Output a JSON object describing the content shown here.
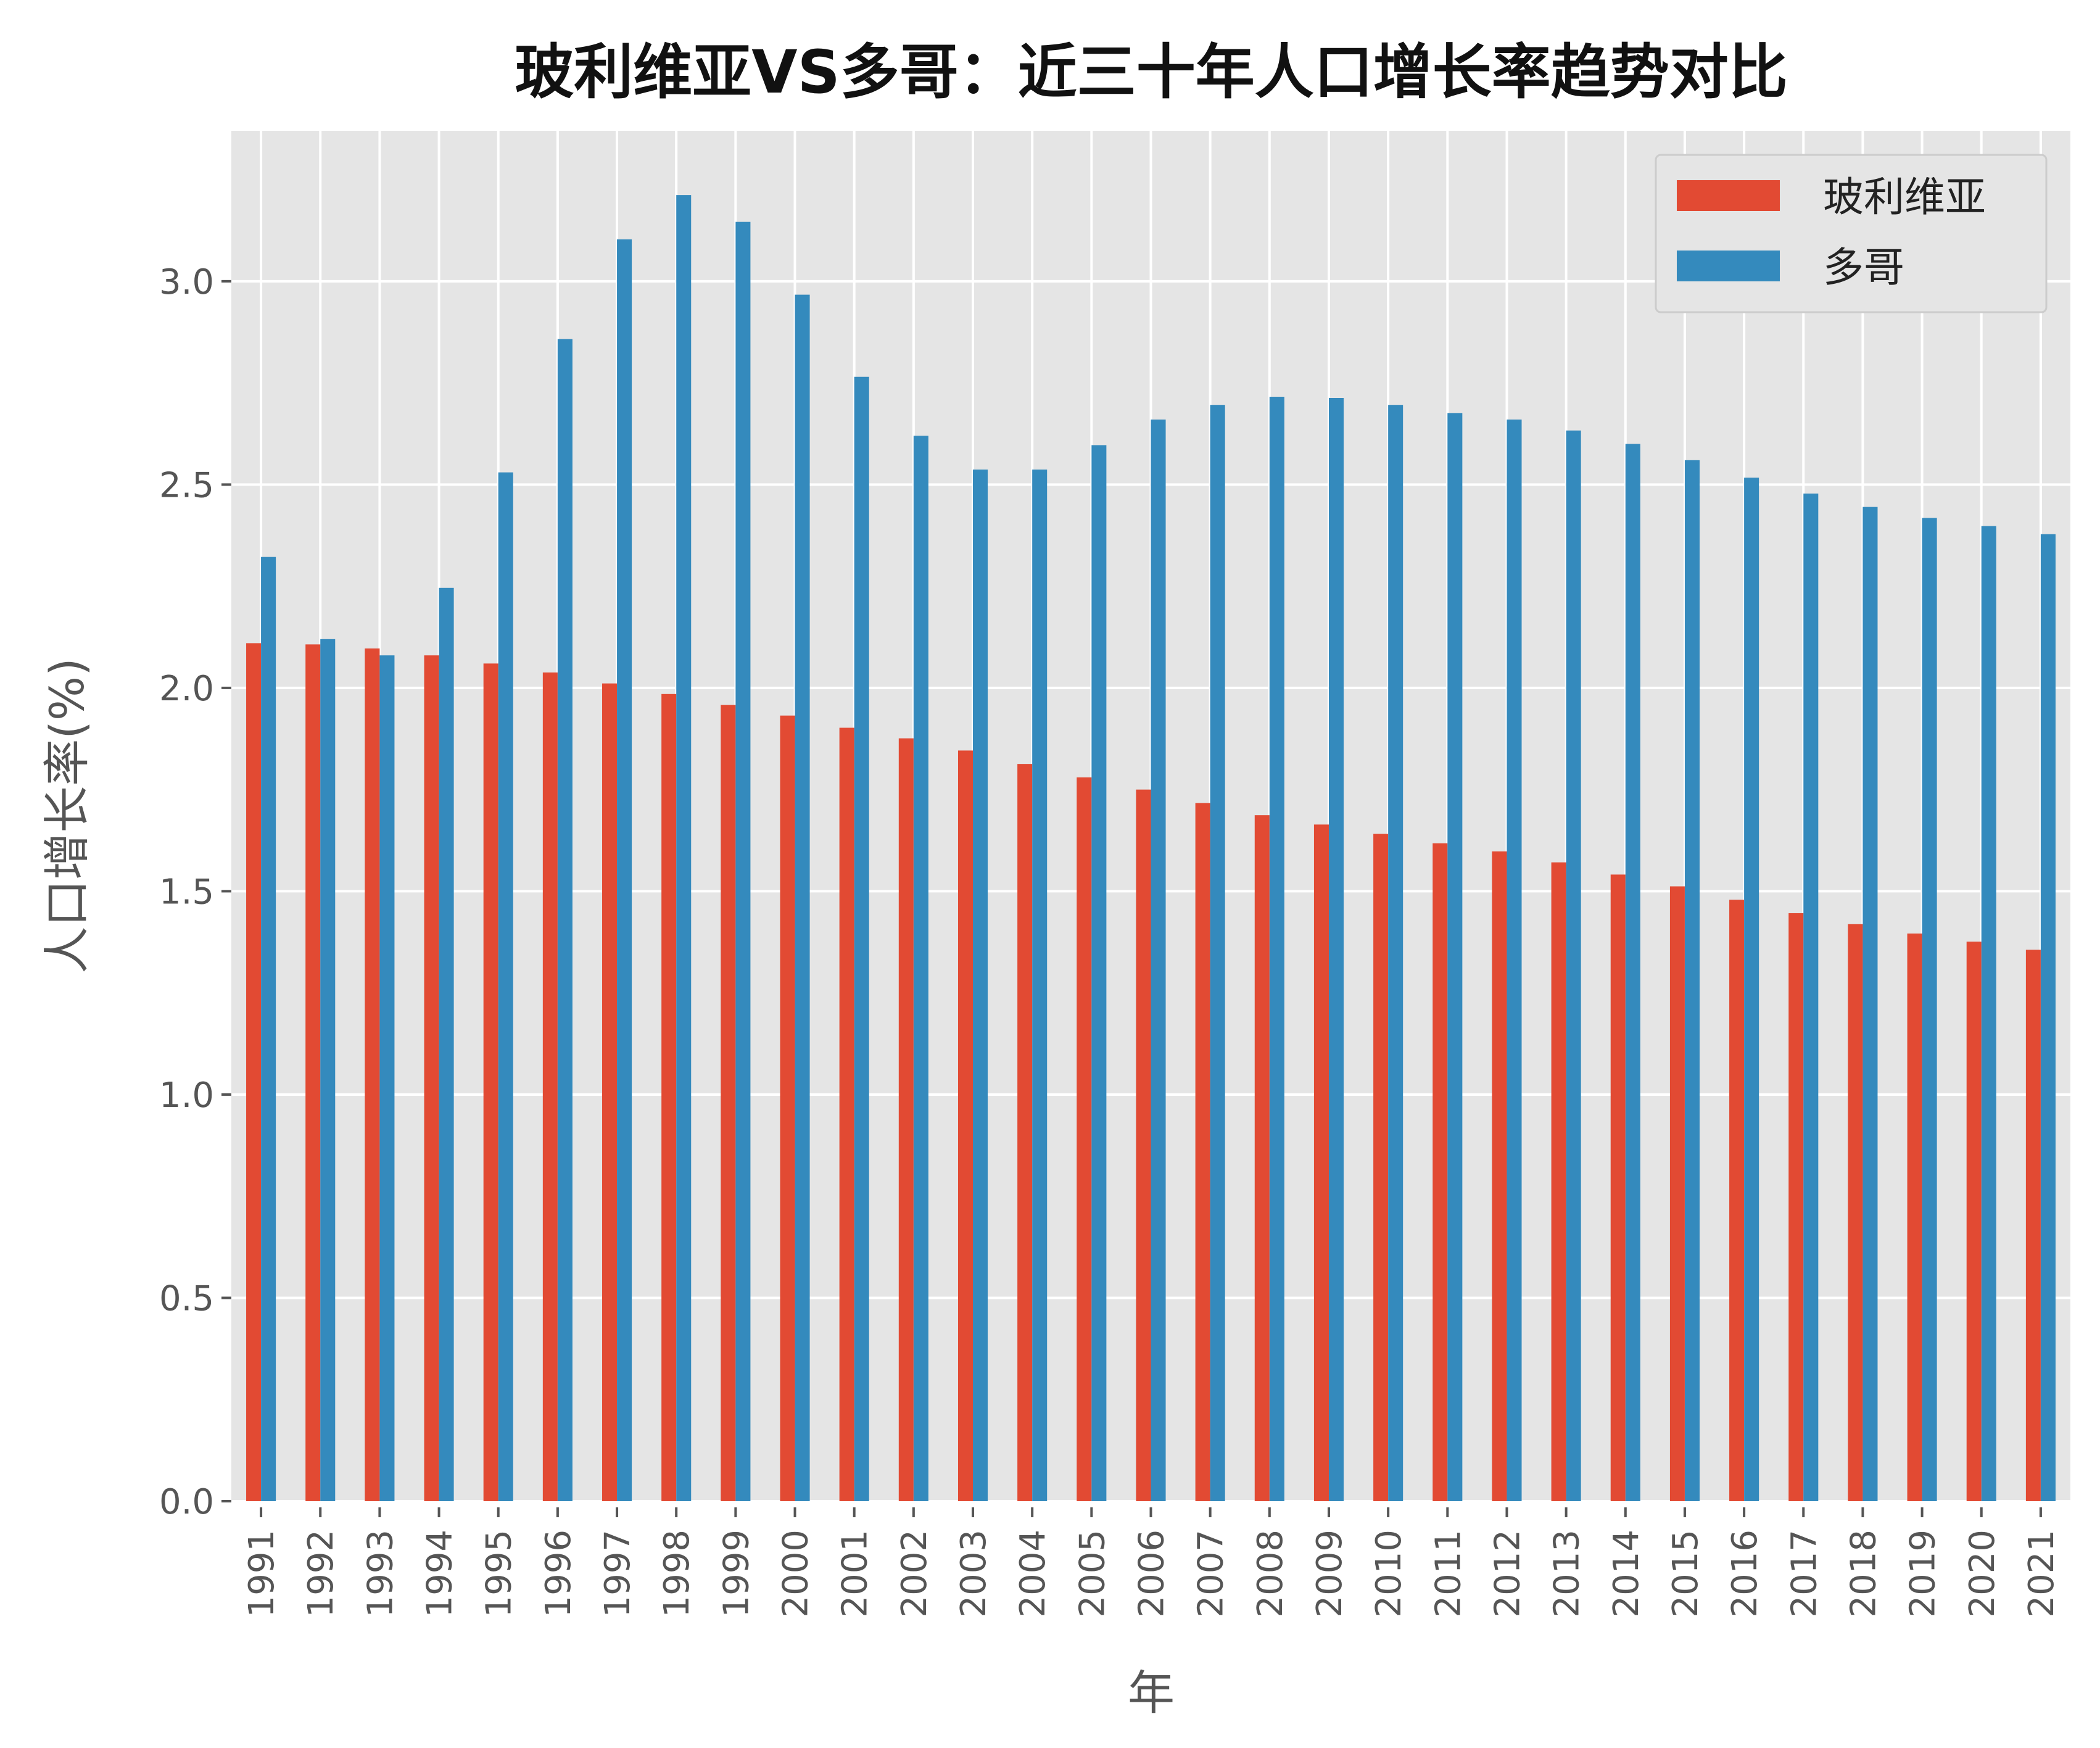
{
  "chart_data": {
    "type": "bar",
    "title": "玻利维亚VS多哥：近三十年人口增长率趋势对比",
    "xlabel": "年",
    "ylabel": "人口增长率(%)",
    "ylim": [
      0,
      3.37
    ],
    "yticks": [
      "0.0",
      "0.5",
      "1.0",
      "1.5",
      "2.0",
      "2.5",
      "3.0"
    ],
    "grid": true,
    "legend_position": "top-right",
    "categories": [
      "1991",
      "1992",
      "1993",
      "1994",
      "1995",
      "1996",
      "1997",
      "1998",
      "1999",
      "2000",
      "2001",
      "2002",
      "2003",
      "2004",
      "2005",
      "2006",
      "2007",
      "2008",
      "2009",
      "2010",
      "2011",
      "2012",
      "2013",
      "2014",
      "2015",
      "2016",
      "2017",
      "2018",
      "2019",
      "2020",
      "2021"
    ],
    "series": [
      {
        "name": "玻利维亚",
        "color": "#E24A33",
        "values": [
          2.11,
          2.107,
          2.097,
          2.08,
          2.06,
          2.038,
          2.011,
          1.985,
          1.958,
          1.932,
          1.902,
          1.876,
          1.846,
          1.813,
          1.78,
          1.75,
          1.717,
          1.687,
          1.664,
          1.641,
          1.618,
          1.598,
          1.571,
          1.541,
          1.512,
          1.479,
          1.446,
          1.419,
          1.396,
          1.376,
          1.356
        ]
      },
      {
        "name": "多哥",
        "color": "#348ABD",
        "values": [
          2.322,
          2.12,
          2.08,
          2.246,
          2.53,
          2.858,
          3.103,
          3.212,
          3.146,
          2.967,
          2.765,
          2.62,
          2.537,
          2.537,
          2.597,
          2.66,
          2.696,
          2.716,
          2.713,
          2.696,
          2.676,
          2.66,
          2.633,
          2.6,
          2.56,
          2.517,
          2.478,
          2.445,
          2.418,
          2.398,
          2.378
        ]
      }
    ],
    "background": "#E5E5E5"
  }
}
